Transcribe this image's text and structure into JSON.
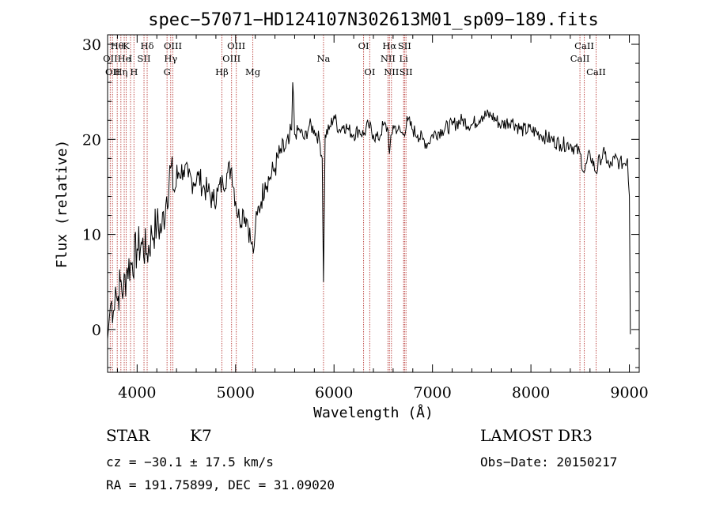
{
  "chart_data": {
    "type": "line",
    "title": "spec−57071−HD124107N302613M01_sp09−189.fits",
    "xlabel": "Wavelength (Å)",
    "ylabel": "Flux (relative)",
    "xlim": [
      3700,
      9100
    ],
    "ylim": [
      -4.5,
      31
    ],
    "x_ticks": [
      4000,
      5000,
      6000,
      7000,
      8000,
      9000
    ],
    "x_tick_labels": [
      "4000",
      "5000",
      "6000",
      "7000",
      "8000",
      "9000"
    ],
    "y_ticks": [
      0,
      10,
      20,
      30
    ],
    "y_tick_labels": [
      "0",
      "10",
      "20",
      "30"
    ],
    "series": [
      {
        "name": "flux",
        "color": "#000000",
        "x": [
          3700,
          3720,
          3740,
          3760,
          3780,
          3800,
          3830,
          3860,
          3900,
          3950,
          4000,
          4050,
          4100,
          4150,
          4200,
          4250,
          4300,
          4340,
          4380,
          4420,
          4470,
          4520,
          4570,
          4620,
          4670,
          4720,
          4770,
          4820,
          4870,
          4920,
          4960,
          5000,
          5040,
          5080,
          5120,
          5160,
          5180,
          5200,
          5220,
          5260,
          5300,
          5350,
          5400,
          5450,
          5500,
          5540,
          5570,
          5580,
          5600,
          5650,
          5700,
          5750,
          5800,
          5850,
          5880,
          5893,
          5910,
          5950,
          6000,
          6050,
          6100,
          6150,
          6200,
          6250,
          6300,
          6350,
          6400,
          6450,
          6500,
          6550,
          6563,
          6600,
          6650,
          6700,
          6750,
          6800,
          6850,
          6900,
          6950,
          7000,
          7100,
          7200,
          7300,
          7400,
          7500,
          7600,
          7700,
          7800,
          7900,
          8000,
          8100,
          8200,
          8300,
          8400,
          8500,
          8540,
          8600,
          8662,
          8700,
          8750,
          8800,
          8850,
          8900,
          8950,
          8980,
          9000,
          9010
        ],
        "y": [
          -1,
          1.5,
          3,
          2,
          4.5,
          3,
          5,
          4,
          6.5,
          7,
          8.5,
          9,
          8,
          10,
          11,
          10.5,
          14,
          17,
          14.5,
          16.5,
          16.8,
          16,
          15.5,
          16.2,
          15,
          14.5,
          13.5,
          14.5,
          15.5,
          16.5,
          17,
          13.5,
          11.5,
          12.5,
          11.5,
          9,
          8,
          10.5,
          12,
          13.5,
          15.5,
          16,
          17,
          18.5,
          19,
          19.5,
          21,
          26,
          20.5,
          21,
          20,
          21.5,
          21,
          20,
          18,
          5,
          20.5,
          21,
          22.5,
          21,
          21.5,
          21,
          20.5,
          21,
          20.5,
          21.5,
          20.5,
          20,
          21.5,
          21,
          18.5,
          21.5,
          21,
          20.5,
          22,
          21,
          20.5,
          20,
          19.5,
          20.5,
          21,
          21.5,
          22,
          21.5,
          22.5,
          22.5,
          21.5,
          22,
          21,
          21,
          20.5,
          20,
          19.5,
          19.5,
          18.5,
          16.5,
          18.5,
          16.5,
          18,
          18.5,
          17,
          18,
          17.5,
          17.5,
          18,
          14,
          -0.5
        ]
      }
    ],
    "spectral_lines": [
      {
        "wavelength": 3727,
        "label": "OII",
        "row": 2
      },
      {
        "wavelength": 3750,
        "label": "OII",
        "row": 3
      },
      {
        "wavelength": 3798,
        "label": "Hθ",
        "row": 1
      },
      {
        "wavelength": 3835,
        "label": "Hη",
        "row": 3
      },
      {
        "wavelength": 3869,
        "label": "He",
        "row": 2
      },
      {
        "wavelength": 3889,
        "label": "K",
        "row": 1
      },
      {
        "wavelength": 3933,
        "label": "I",
        "row": 2
      },
      {
        "wavelength": 3968,
        "label": "H",
        "row": 3
      },
      {
        "wavelength": 4070,
        "label": "SII",
        "row": 2
      },
      {
        "wavelength": 4102,
        "label": "Hδ",
        "row": 1
      },
      {
        "wavelength": 4304,
        "label": "G",
        "row": 3
      },
      {
        "wavelength": 4341,
        "label": "Hγ",
        "row": 2
      },
      {
        "wavelength": 4363,
        "label": "OIII",
        "row": 1
      },
      {
        "wavelength": 4861,
        "label": "Hβ",
        "row": 3
      },
      {
        "wavelength": 4959,
        "label": "OIII",
        "row": 2
      },
      {
        "wavelength": 5007,
        "label": "OIII",
        "row": 1
      },
      {
        "wavelength": 5175,
        "label": "Mg",
        "row": 3
      },
      {
        "wavelength": 5893,
        "label": "Na",
        "row": 2
      },
      {
        "wavelength": 6300,
        "label": "OI",
        "row": 1
      },
      {
        "wavelength": 6363,
        "label": "OI",
        "row": 3
      },
      {
        "wavelength": 6548,
        "label": "NII",
        "row": 2
      },
      {
        "wavelength": 6563,
        "label": "Hα",
        "row": 1
      },
      {
        "wavelength": 6583,
        "label": "NII",
        "row": 3
      },
      {
        "wavelength": 6707,
        "label": "Li",
        "row": 2
      },
      {
        "wavelength": 6716,
        "label": "SII",
        "row": 1
      },
      {
        "wavelength": 6731,
        "label": "SII",
        "row": 3
      },
      {
        "wavelength": 8498,
        "label": "CaII",
        "row": 2
      },
      {
        "wavelength": 8542,
        "label": "CaII",
        "row": 1
      },
      {
        "wavelength": 8662,
        "label": "CaII",
        "row": 3
      }
    ],
    "spectral_line_color": "#c0504d"
  },
  "footer": {
    "object_class": "STAR",
    "subclass": "K7",
    "survey": "LAMOST DR3",
    "redshift": "cz = −30.1 ± 17.5 km/s",
    "obs_date": "Obs−Date: 20150217",
    "coordinates": "RA = 191.75899, DEC =  31.09020"
  }
}
